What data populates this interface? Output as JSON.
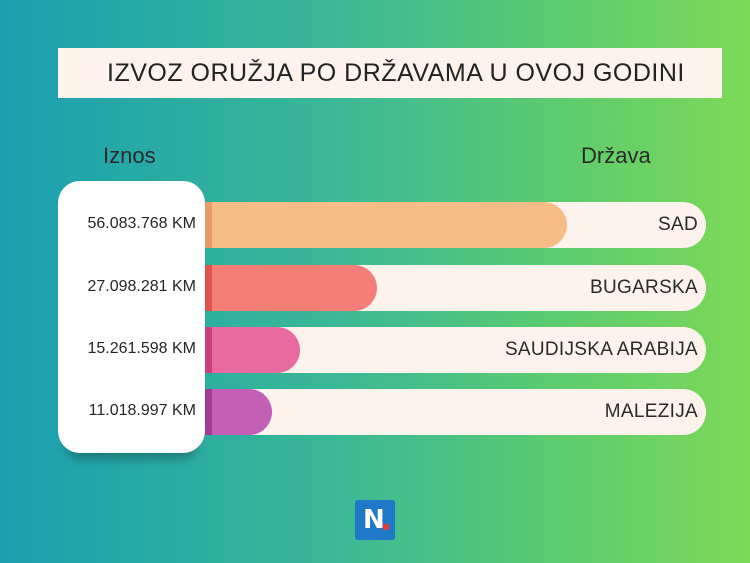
{
  "title": "IZVOZ ORUŽJA PO DRŽAVAMA U OVOJ GODINI",
  "columns": {
    "amount": "Iznos",
    "country": "Država"
  },
  "chart_data": {
    "type": "bar",
    "orientation": "horizontal",
    "title": "IZVOZ ORUŽJA PO DRŽAVAMA U OVOJ GODINI",
    "categories": [
      "SAD",
      "BUGARSKA",
      "SAUDIJSKA ARABIJA",
      "MALEZIJA"
    ],
    "values": [
      56083768,
      27098281,
      15261598,
      11018997
    ],
    "value_labels": [
      "56.083.768 KM",
      "27.098.281 KM",
      "15.261.598 KM",
      "11.018.997 KM"
    ],
    "colors": [
      "#f6bc88",
      "#f57f77",
      "#e96aa0",
      "#c45fb6"
    ],
    "edge_colors": [
      "#e99a6a",
      "#e0534c",
      "#cc3f7f",
      "#a03c92"
    ]
  },
  "logo": {
    "letter": "N",
    "color": "#1f78c8",
    "dot_color": "#e63b3b"
  }
}
